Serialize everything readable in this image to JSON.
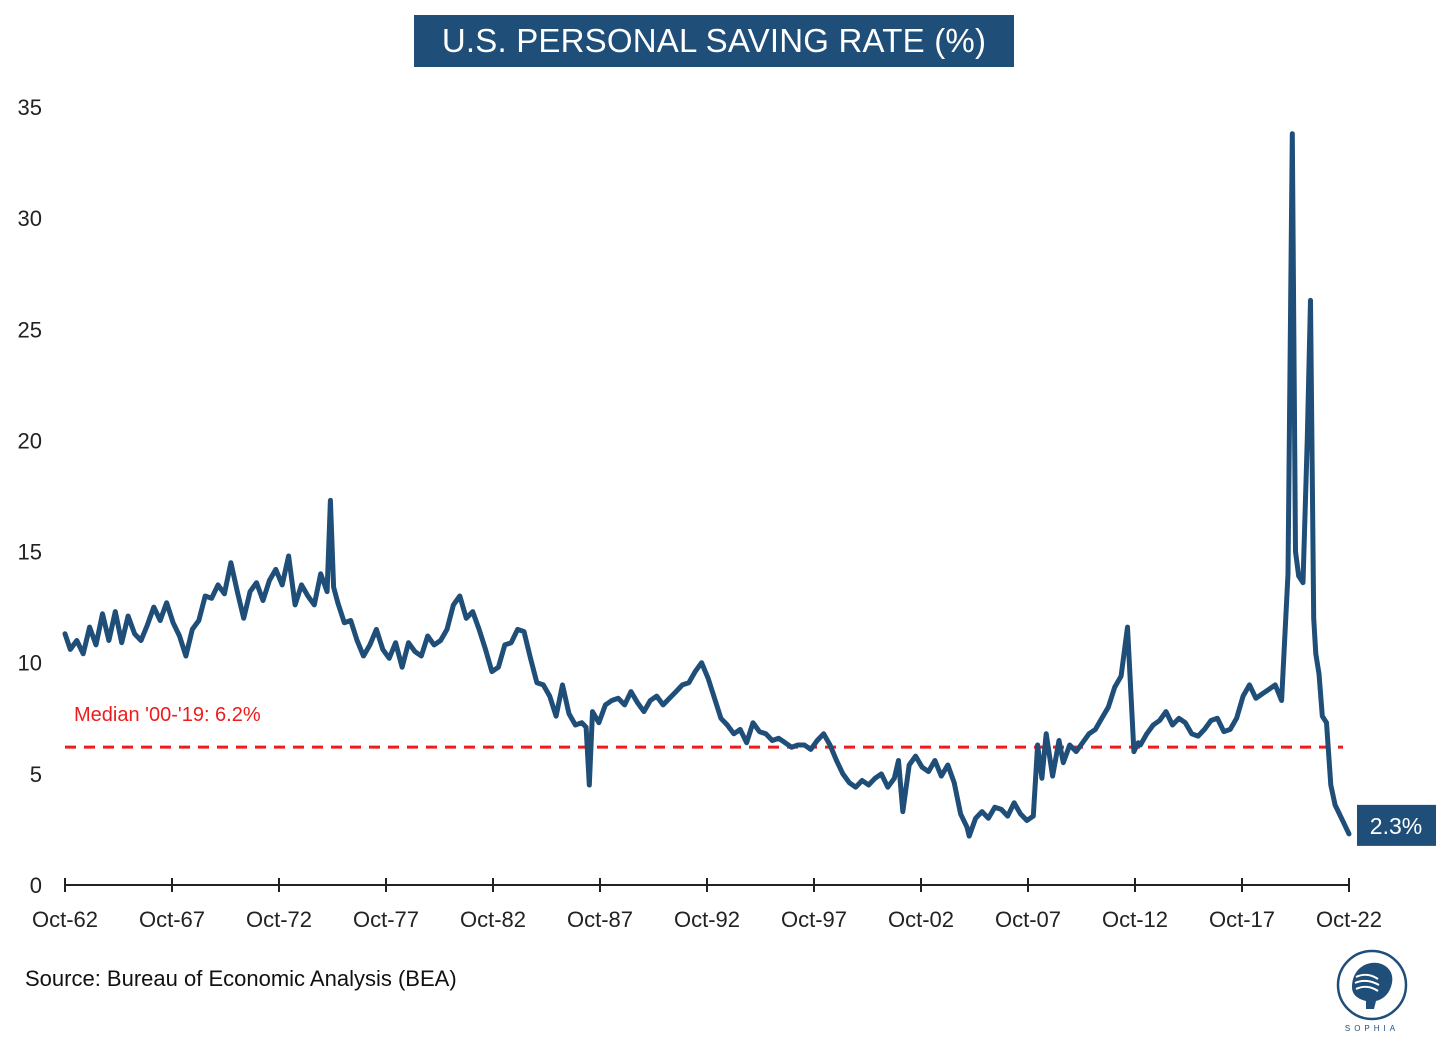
{
  "chart_data": {
    "type": "line",
    "title": "U.S. PERSONAL SAVING RATE (%)",
    "xlabel": "",
    "ylabel": "",
    "ylim": [
      0,
      35
    ],
    "yticks": [
      0,
      5,
      10,
      15,
      20,
      25,
      30,
      35
    ],
    "x_range": [
      1962.75,
      2022.75
    ],
    "xticks": [
      {
        "label": "Oct-62",
        "value": 1962.75
      },
      {
        "label": "Oct-67",
        "value": 1967.75
      },
      {
        "label": "Oct-72",
        "value": 1972.75
      },
      {
        "label": "Oct-77",
        "value": 1977.75
      },
      {
        "label": "Oct-82",
        "value": 1982.75
      },
      {
        "label": "Oct-87",
        "value": 1987.75
      },
      {
        "label": "Oct-92",
        "value": 1992.75
      },
      {
        "label": "Oct-97",
        "value": 1997.75
      },
      {
        "label": "Oct-02",
        "value": 2002.75
      },
      {
        "label": "Oct-07",
        "value": 2007.75
      },
      {
        "label": "Oct-12",
        "value": 2012.75
      },
      {
        "label": "Oct-17",
        "value": 2017.75
      },
      {
        "label": "Oct-22",
        "value": 2022.75
      }
    ],
    "series": [
      {
        "name": "Personal Saving Rate",
        "color": "#1f4e79",
        "x": [
          1962.75,
          1963.0,
          1963.3,
          1963.6,
          1963.9,
          1964.2,
          1964.5,
          1964.8,
          1965.1,
          1965.4,
          1965.7,
          1966.0,
          1966.3,
          1966.6,
          1966.9,
          1967.2,
          1967.5,
          1967.8,
          1968.1,
          1968.4,
          1968.7,
          1969.0,
          1969.3,
          1969.6,
          1969.9,
          1970.2,
          1970.5,
          1970.8,
          1971.1,
          1971.4,
          1971.7,
          1972.0,
          1972.3,
          1972.6,
          1972.9,
          1973.2,
          1973.5,
          1973.8,
          1974.1,
          1974.4,
          1974.7,
          1975.0,
          1975.15,
          1975.3,
          1975.5,
          1975.8,
          1976.1,
          1976.4,
          1976.7,
          1977.0,
          1977.3,
          1977.6,
          1977.9,
          1978.2,
          1978.5,
          1978.8,
          1979.1,
          1979.4,
          1979.7,
          1980.0,
          1980.3,
          1980.6,
          1980.9,
          1981.2,
          1981.5,
          1981.8,
          1982.1,
          1982.4,
          1982.7,
          1983.0,
          1983.3,
          1983.6,
          1983.9,
          1984.2,
          1984.5,
          1984.8,
          1985.1,
          1985.4,
          1985.7,
          1986.0,
          1986.3,
          1986.6,
          1986.9,
          1987.1,
          1987.25,
          1987.4,
          1987.7,
          1988.0,
          1988.3,
          1988.6,
          1988.9,
          1989.2,
          1989.5,
          1989.8,
          1990.1,
          1990.4,
          1990.7,
          1991.0,
          1991.3,
          1991.6,
          1991.9,
          1992.2,
          1992.5,
          1992.8,
          1993.1,
          1993.4,
          1993.7,
          1994.0,
          1994.3,
          1994.6,
          1994.9,
          1995.2,
          1995.5,
          1995.8,
          1996.1,
          1996.4,
          1996.7,
          1997.0,
          1997.3,
          1997.6,
          1997.9,
          1998.2,
          1998.5,
          1998.8,
          1999.1,
          1999.4,
          1999.7,
          2000.0,
          2000.3,
          2000.6,
          2000.9,
          2001.2,
          2001.5,
          2001.7,
          2001.9,
          2002.2,
          2002.5,
          2002.8,
          2003.1,
          2003.4,
          2003.7,
          2004.0,
          2004.3,
          2004.6,
          2004.9,
          2005.0,
          2005.3,
          2005.6,
          2005.9,
          2006.2,
          2006.5,
          2006.8,
          2007.1,
          2007.4,
          2007.7,
          2008.0,
          2008.2,
          2008.4,
          2008.6,
          2008.9,
          2009.2,
          2009.4,
          2009.7,
          2010.0,
          2010.3,
          2010.6,
          2010.9,
          2011.2,
          2011.5,
          2011.8,
          2012.1,
          2012.4,
          2012.7,
          2012.9,
          2013.0,
          2013.3,
          2013.6,
          2013.9,
          2014.2,
          2014.5,
          2014.8,
          2015.1,
          2015.4,
          2015.7,
          2016.0,
          2016.3,
          2016.6,
          2016.9,
          2017.2,
          2017.5,
          2017.8,
          2018.1,
          2018.4,
          2018.7,
          2019.0,
          2019.3,
          2019.6,
          2019.9,
          2020.1,
          2020.25,
          2020.4,
          2020.6,
          2020.8,
          2020.95,
          2021.1,
          2021.2,
          2021.35,
          2021.5,
          2021.7,
          2021.9,
          2022.1,
          2022.3,
          2022.5,
          2022.75
        ],
        "values": [
          11.3,
          10.6,
          11.0,
          10.4,
          11.6,
          10.8,
          12.2,
          11.0,
          12.3,
          10.9,
          12.1,
          11.3,
          11.0,
          11.7,
          12.5,
          11.9,
          12.7,
          11.8,
          11.2,
          10.3,
          11.5,
          11.9,
          13.0,
          12.9,
          13.5,
          13.1,
          14.5,
          13.2,
          12.0,
          13.2,
          13.6,
          12.8,
          13.7,
          14.2,
          13.5,
          14.8,
          12.6,
          13.5,
          13.0,
          12.6,
          14.0,
          13.2,
          17.3,
          13.4,
          12.7,
          11.8,
          11.9,
          11.0,
          10.3,
          10.8,
          11.5,
          10.6,
          10.2,
          10.9,
          9.8,
          10.9,
          10.5,
          10.3,
          11.2,
          10.8,
          11.0,
          11.5,
          12.6,
          13.0,
          12.0,
          12.3,
          11.5,
          10.6,
          9.6,
          9.8,
          10.8,
          10.9,
          11.5,
          11.4,
          10.2,
          9.1,
          9.0,
          8.5,
          7.6,
          9.0,
          7.7,
          7.2,
          7.3,
          7.1,
          4.5,
          7.8,
          7.3,
          8.1,
          8.3,
          8.4,
          8.1,
          8.7,
          8.2,
          7.8,
          8.3,
          8.5,
          8.1,
          8.4,
          8.7,
          9.0,
          9.1,
          9.6,
          10.0,
          9.3,
          8.4,
          7.5,
          7.2,
          6.8,
          7.0,
          6.4,
          7.3,
          6.9,
          6.8,
          6.5,
          6.6,
          6.4,
          6.2,
          6.3,
          6.3,
          6.1,
          6.5,
          6.8,
          6.3,
          5.6,
          5.0,
          4.6,
          4.4,
          4.7,
          4.5,
          4.8,
          5.0,
          4.4,
          4.8,
          5.6,
          3.3,
          5.4,
          5.8,
          5.3,
          5.1,
          5.6,
          4.9,
          5.4,
          4.6,
          3.2,
          2.6,
          2.2,
          3.0,
          3.3,
          3.0,
          3.5,
          3.4,
          3.1,
          3.7,
          3.2,
          2.9,
          3.1,
          6.3,
          4.8,
          6.8,
          4.9,
          6.5,
          5.5,
          6.3,
          6.0,
          6.4,
          6.8,
          7.0,
          7.5,
          8.0,
          8.9,
          9.4,
          11.6,
          6.0,
          6.4,
          6.3,
          6.8,
          7.2,
          7.4,
          7.8,
          7.2,
          7.5,
          7.3,
          6.8,
          6.7,
          7.0,
          7.4,
          7.5,
          6.9,
          7.0,
          7.5,
          8.5,
          9.0,
          8.4,
          8.6,
          8.8,
          9.0,
          8.3,
          14.0,
          33.8,
          15.0,
          13.9,
          13.6,
          20.1,
          26.3,
          12.0,
          10.4,
          9.5,
          7.6,
          7.3,
          4.5,
          3.6,
          3.2,
          2.8,
          2.3
        ]
      }
    ],
    "reference_lines": [
      {
        "label": "Median '00-'19: 6.2%",
        "value": 6.2,
        "color": "#ee1c1c"
      }
    ],
    "end_label": "2.3%",
    "source": "Source: Bureau of Economic Analysis (BEA)",
    "logo_text": "SOPHIA"
  }
}
